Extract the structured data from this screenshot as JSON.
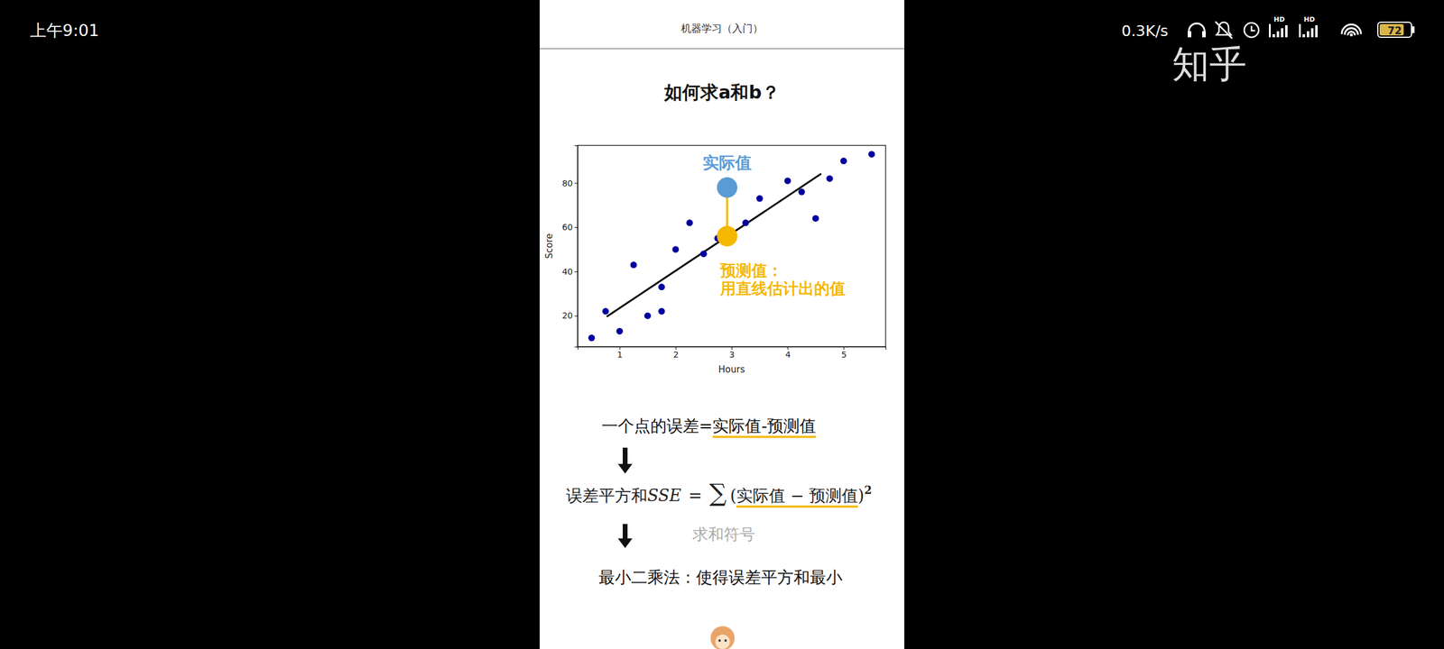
{
  "status_bar": {
    "time": "上午9:01",
    "speed": "0.3K/s",
    "signal_labels": [
      "HD",
      "HD"
    ],
    "battery": 72
  },
  "watermark": "知乎",
  "header": "机器学习（入门）",
  "title": "如何求a和b？",
  "chart_data": {
    "type": "scatter",
    "x_label": "Hours",
    "y_label": "Score",
    "xlim": [
      0.25,
      5.75
    ],
    "ylim": [
      6,
      97
    ],
    "xticks": [
      1,
      2,
      3,
      4,
      5
    ],
    "yticks": [
      20,
      40,
      60,
      80
    ],
    "series": [
      {
        "type": "line",
        "color": "#000000",
        "line_style": "solid",
        "x": [
          0.77,
          4.6
        ],
        "values": [
          19.6,
          84.2
        ]
      },
      {
        "type": "scatter",
        "color": "#00009c",
        "marker": "circle",
        "x": [
          0.5,
          0.75,
          1.0,
          1.25,
          1.5,
          1.75,
          1.75,
          2.0,
          2.25,
          2.5,
          2.75,
          3.25,
          3.5,
          4.0,
          4.25,
          4.5,
          4.75,
          5.0,
          5.5
        ],
        "values": [
          10,
          22,
          13,
          43,
          20,
          33,
          22,
          50,
          62,
          48,
          55,
          62,
          73,
          81,
          76,
          64,
          82,
          90,
          93
        ]
      }
    ],
    "annotations": [
      {
        "text": [
          "实际值"
        ],
        "x": 2.92,
        "y": 78,
        "color": "#5b9bd5"
      },
      {
        "text": [
          "预测值：",
          "用直线估计出的值"
        ],
        "x": 2.92,
        "y": 56,
        "color": "#f5b800"
      }
    ]
  },
  "steps": {
    "error": {
      "prefix": "一个点的误差=",
      "underlined": "实际值-预测值"
    },
    "sse": {
      "lhs": "误差平方和",
      "lhs_symbol": "SSE",
      "equals": "=",
      "sum": "∑",
      "open": "(",
      "inner": "实际值 − 预测值",
      "close": ")",
      "power": 2,
      "sum_note": "求和符号"
    },
    "least_squares": "最小二乘法：使得误差平方和最小"
  }
}
